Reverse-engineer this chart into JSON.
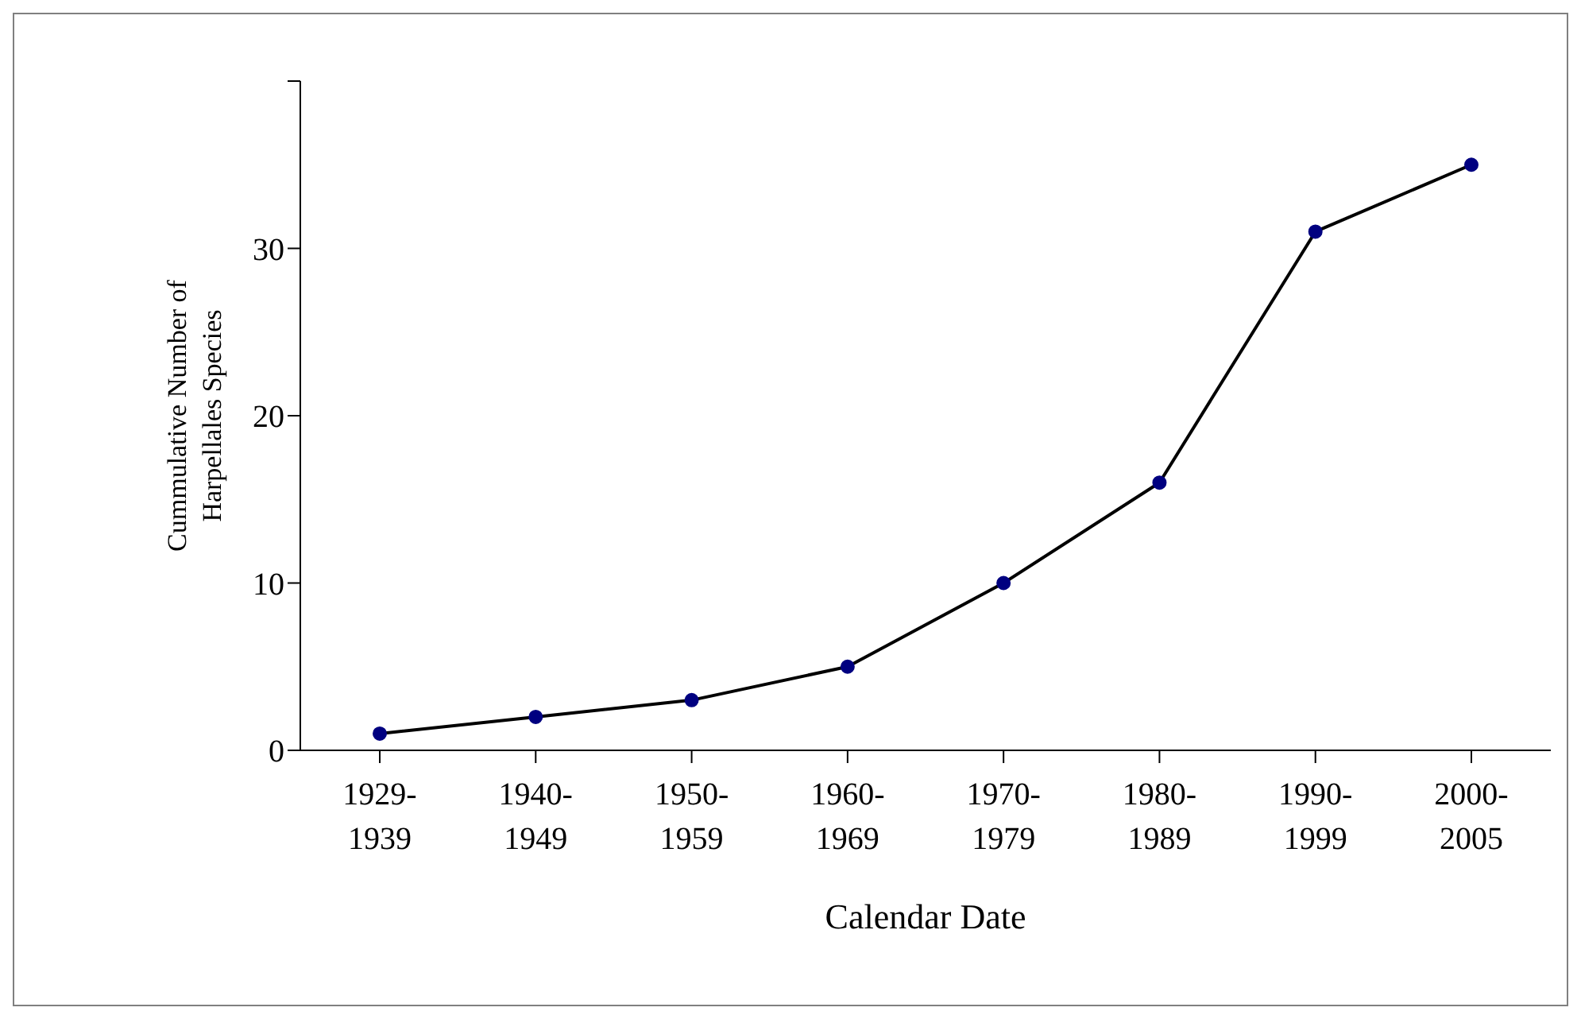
{
  "chart_data": {
    "type": "line",
    "xlabel": "Calendar Date",
    "ylabel": "Cummulative Number of Harpellales Species",
    "categories": [
      "1929-1939",
      "1940-1949",
      "1950-1959",
      "1960-1969",
      "1970-1979",
      "1980-1989",
      "1990-1999",
      "2000-2005"
    ],
    "series": [
      {
        "color": "#000080",
        "values": [
          1,
          2,
          3,
          5,
          10,
          16,
          31,
          35
        ]
      }
    ],
    "ylim": [
      0,
      40
    ],
    "yticks": [
      0,
      10,
      20,
      30,
      {
        "value": 40,
        "label": null
      }
    ],
    "marker": "circle",
    "line_style": "solid"
  }
}
